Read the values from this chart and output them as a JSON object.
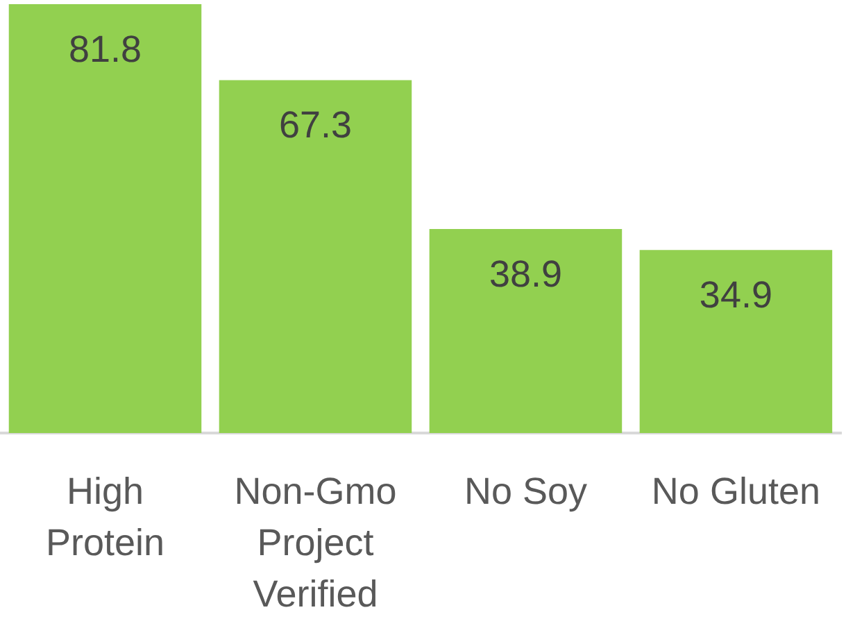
{
  "chart_data": {
    "type": "bar",
    "categories": [
      "High Protein",
      "Non-Gmo Project Verified",
      "No Soy",
      "No Gluten"
    ],
    "values": [
      81.8,
      67.3,
      38.9,
      34.9
    ],
    "color": "#92d050",
    "data_labels": true
  }
}
